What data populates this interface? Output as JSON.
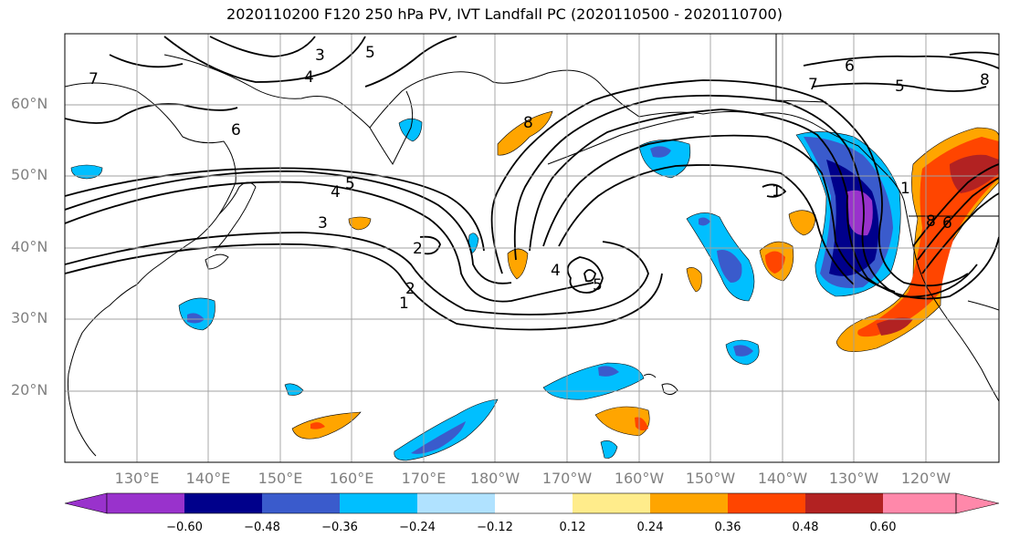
{
  "title": "2020110200 F120 250 hPa PV, IVT Landfall PC (2020110500 - 2020110700)",
  "lat_labels": [
    "60°N",
    "50°N",
    "40°N",
    "30°N",
    "20°N"
  ],
  "lon_labels": [
    "130°E",
    "140°E",
    "150°E",
    "160°E",
    "170°E",
    "180°W",
    "170°W",
    "160°W",
    "150°W",
    "140°W",
    "130°W",
    "120°W"
  ],
  "colorbar": {
    "colors": [
      "#9932cc",
      "#00008b",
      "#3a5bcc",
      "#00bfff",
      "#b0e2ff",
      "#ffffff",
      "#ffec8b",
      "#ffa500",
      "#ff4500",
      "#b22222",
      "#ff88aa"
    ],
    "ticks": [
      "−0.60",
      "−0.48",
      "−0.36",
      "−0.24",
      "−0.12",
      "0.12",
      "0.24",
      "0.36",
      "0.48",
      "0.60"
    ]
  },
  "contour_labels": [
    "3",
    "4",
    "5",
    "6",
    "7",
    "5",
    "4",
    "3",
    "2",
    "2",
    "1",
    "8",
    "4",
    "5",
    "6",
    "7",
    "5",
    "8",
    "1",
    "8",
    "6",
    "1"
  ]
}
